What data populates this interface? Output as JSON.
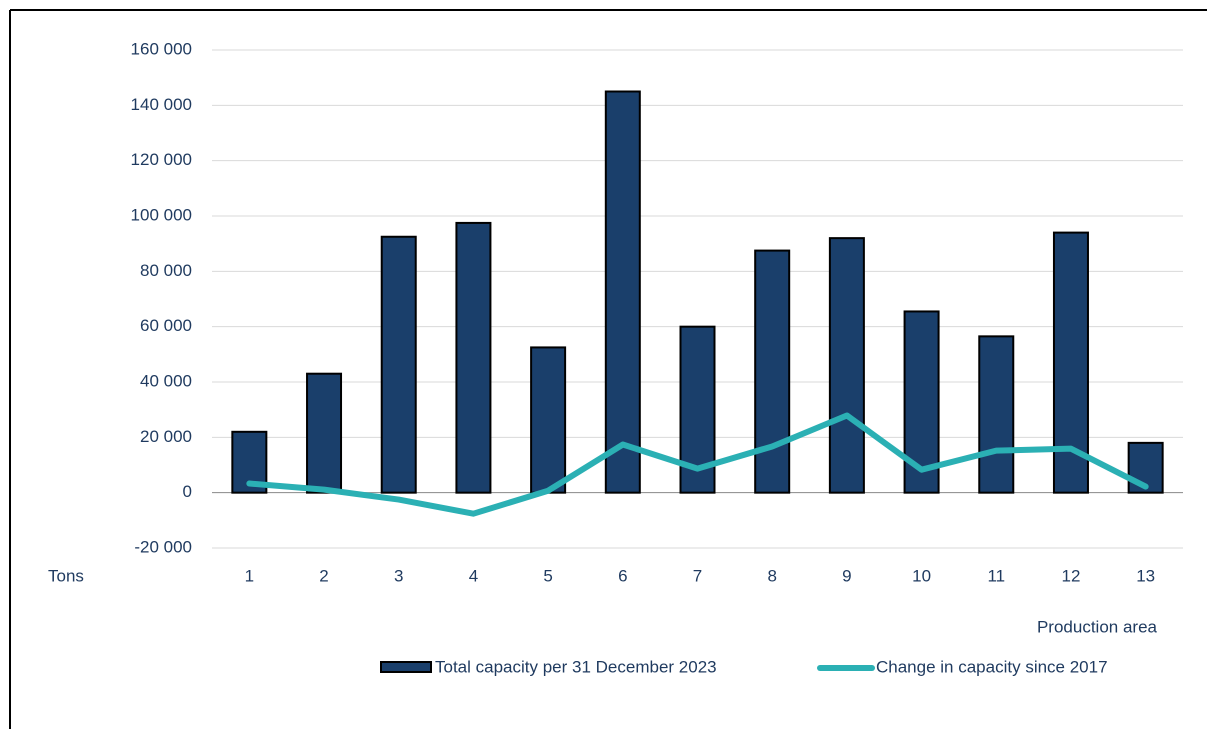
{
  "chart_data": {
    "type": "bar_line",
    "y_label": "Tons",
    "x_label": "Production area",
    "categories": [
      "1",
      "2",
      "3",
      "4",
      "5",
      "6",
      "7",
      "8",
      "9",
      "10",
      "11",
      "12",
      "13"
    ],
    "series": [
      {
        "name": "Total capacity per 31 December 2023",
        "type": "bar",
        "color": "#1a3f6b",
        "values": [
          22000,
          43000,
          92500,
          97500,
          52500,
          145000,
          60000,
          87500,
          92000,
          65500,
          56500,
          94000,
          18000
        ]
      },
      {
        "name": "Change in capacity since 2017",
        "type": "line",
        "color": "#2bb0b4",
        "values": [
          3300,
          1100,
          -2500,
          -7600,
          700,
          17400,
          8700,
          16700,
          27900,
          8300,
          15200,
          15900,
          2200
        ]
      }
    ],
    "ylim": [
      -20000,
      160000
    ],
    "yticks": [
      {
        "value": -20000,
        "label": "-20 000"
      },
      0,
      {
        "value": 20000,
        "label": "20 000"
      },
      {
        "value": 40000,
        "label": "40 000"
      },
      {
        "value": 60000,
        "label": "60 000"
      },
      {
        "value": 80000,
        "label": "80 000"
      },
      {
        "value": 100000,
        "label": "100 000"
      },
      {
        "value": 120000,
        "label": "120 000"
      },
      {
        "value": 140000,
        "label": "140 000"
      },
      {
        "value": 160000,
        "label": "160 000"
      }
    ],
    "grid": true,
    "legend": "bottom-right"
  }
}
